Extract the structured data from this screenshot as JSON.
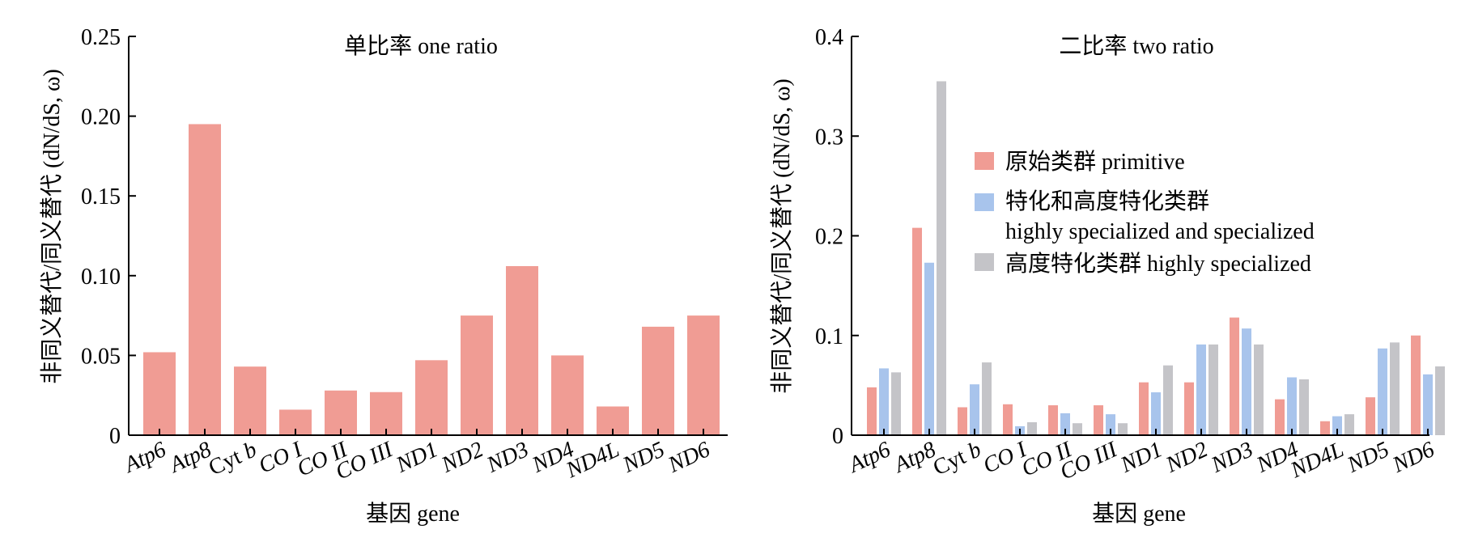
{
  "chart_data": [
    {
      "type": "bar",
      "title": "单比率 one ratio",
      "xlabel": "基因 gene",
      "ylabel": "非同义替代/同义替代 (dN/dS, ω)",
      "ylim": [
        0,
        0.25
      ],
      "yticks": [
        "0",
        "0.05",
        "0.10",
        "0.15",
        "0.20",
        "0.25"
      ],
      "categories": [
        "Atp6",
        "Atp8",
        "Cyt b",
        "CO I",
        "CO II",
        "CO III",
        "ND1",
        "ND2",
        "ND3",
        "ND4",
        "ND4L",
        "ND5",
        "ND6"
      ],
      "series": [
        {
          "color": "#f09c94",
          "values": [
            0.052,
            0.195,
            0.043,
            0.016,
            0.028,
            0.027,
            0.047,
            0.075,
            0.106,
            0.05,
            0.018,
            0.068,
            0.075
          ]
        }
      ],
      "grid": false
    },
    {
      "type": "bar",
      "title": "二比率 two ratio",
      "xlabel": "基因 gene",
      "ylabel": "非同义替代/同义替代 (dN/dS, ω)",
      "ylim": [
        0,
        0.4
      ],
      "yticks": [
        "0",
        "0.1",
        "0.2",
        "0.3",
        "0.4"
      ],
      "categories": [
        "Atp6",
        "Atp8",
        "Cyt b",
        "CO I",
        "CO II",
        "CO III",
        "ND1",
        "ND2",
        "ND3",
        "ND4",
        "ND4L",
        "ND5",
        "ND6"
      ],
      "series": [
        {
          "name": "原始类群 primitive",
          "color": "#f09c94",
          "values": [
            0.048,
            0.208,
            0.028,
            0.031,
            0.03,
            0.03,
            0.053,
            0.053,
            0.118,
            0.036,
            0.014,
            0.038,
            0.1
          ]
        },
        {
          "name": "特化和高度特化类群",
          "name2": "highly specialized and specialized",
          "color": "#a8c4ec",
          "values": [
            0.067,
            0.173,
            0.051,
            0.009,
            0.022,
            0.021,
            0.043,
            0.091,
            0.107,
            0.058,
            0.019,
            0.087,
            0.061
          ]
        },
        {
          "name": "高度特化类群 highly specialized",
          "color": "#c4c4c8",
          "values": [
            0.063,
            0.355,
            0.073,
            0.013,
            0.012,
            0.012,
            0.07,
            0.091,
            0.091,
            0.056,
            0.021,
            0.093,
            0.069
          ]
        }
      ],
      "legend": "upper-right",
      "grid": false
    }
  ]
}
